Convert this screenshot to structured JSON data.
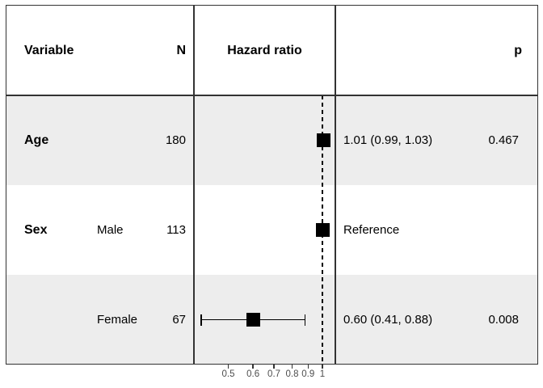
{
  "table": {
    "headers": {
      "variable": "Variable",
      "n": "N",
      "hazard_ratio": "Hazard ratio",
      "p": "p"
    },
    "rows": [
      {
        "variable": "Age",
        "level": "",
        "n": "180",
        "estimate": "1.01 (0.99, 1.03)",
        "p": "0.467"
      },
      {
        "variable": "Sex",
        "level": "Male",
        "n": "113",
        "estimate": "Reference",
        "p": ""
      },
      {
        "variable": "",
        "level": "Female",
        "n": "67",
        "estimate": "0.60 (0.41, 0.88)",
        "p": "0.008"
      }
    ]
  },
  "chart_data": {
    "type": "scatter",
    "subtype": "forest-plot",
    "title": "",
    "xlabel": "",
    "ylabel": "",
    "x_scale": "log10",
    "x_range": [
      0.39,
      1.1
    ],
    "x_ticks": [
      0.5,
      0.6,
      0.7,
      0.8,
      0.9,
      1
    ],
    "x_tick_labels": [
      "0.5",
      "0.6",
      "0.7",
      "0.8",
      "0.9",
      "1"
    ],
    "reference_line_x": 1,
    "grid": false,
    "legend": "none",
    "points": [
      {
        "name": "Age",
        "hr": 1.01,
        "ci_low": 0.99,
        "ci_high": 1.03,
        "row": 0
      },
      {
        "name": "Sex: Male (reference)",
        "hr": 1.0,
        "ci_low": null,
        "ci_high": null,
        "row": 1
      },
      {
        "name": "Sex: Female",
        "hr": 0.6,
        "ci_low": 0.41,
        "ci_high": 0.88,
        "row": 2
      }
    ]
  },
  "colors": {
    "stripe": "#ededed",
    "border": "#333333",
    "marker": "#000000",
    "reference_line": "#000000",
    "tick_label": "#4d4d4d",
    "background": "#ffffff"
  }
}
